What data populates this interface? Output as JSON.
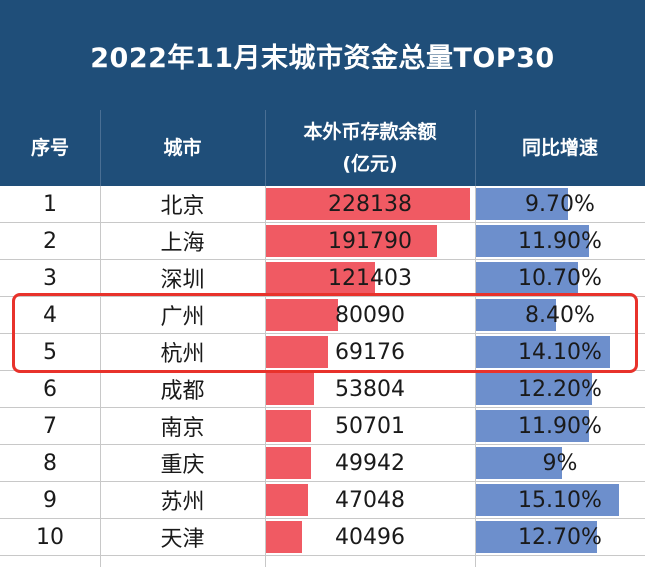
{
  "title": "2022年11月末城市资金总量TOP30",
  "headers": {
    "rank": "序号",
    "city": "城市",
    "deposits_line1": "本外币存款余额",
    "deposits_line2": "(亿元)",
    "growth": "同比增速"
  },
  "colors": {
    "header_bg": "#1f4e79",
    "deposit_bar": "#f05a63",
    "growth_bar": "#6d8fcc",
    "highlight": "#e8322b"
  },
  "highlighted_ranks": [
    "4",
    "5"
  ],
  "chart_data": {
    "type": "table",
    "columns": [
      "序号",
      "城市",
      "本外币存款余额(亿元)",
      "同比增速"
    ],
    "rows": [
      {
        "rank": "1",
        "city": "北京",
        "deposits": "228138",
        "growth": "9.70%",
        "deposit_value": 228138,
        "growth_value": 9.7
      },
      {
        "rank": "2",
        "city": "上海",
        "deposits": "191790",
        "growth": "11.90%",
        "deposit_value": 191790,
        "growth_value": 11.9
      },
      {
        "rank": "3",
        "city": "深圳",
        "deposits": "121403",
        "growth": "10.70%",
        "deposit_value": 121403,
        "growth_value": 10.7
      },
      {
        "rank": "4",
        "city": "广州",
        "deposits": "80090",
        "growth": "8.40%",
        "deposit_value": 80090,
        "growth_value": 8.4
      },
      {
        "rank": "5",
        "city": "杭州",
        "deposits": "69176",
        "growth": "14.10%",
        "deposit_value": 69176,
        "growth_value": 14.1
      },
      {
        "rank": "6",
        "city": "成都",
        "deposits": "53804",
        "growth": "12.20%",
        "deposit_value": 53804,
        "growth_value": 12.2
      },
      {
        "rank": "7",
        "city": "南京",
        "deposits": "50701",
        "growth": "11.90%",
        "deposit_value": 50701,
        "growth_value": 11.9
      },
      {
        "rank": "8",
        "city": "重庆",
        "deposits": "49942",
        "growth": "9%",
        "deposit_value": 49942,
        "growth_value": 9.0
      },
      {
        "rank": "9",
        "city": "苏州",
        "deposits": "47048",
        "growth": "15.10%",
        "deposit_value": 47048,
        "growth_value": 15.1
      },
      {
        "rank": "10",
        "city": "天津",
        "deposits": "40496",
        "growth": "12.70%",
        "deposit_value": 40496,
        "growth_value": 12.7
      }
    ]
  }
}
